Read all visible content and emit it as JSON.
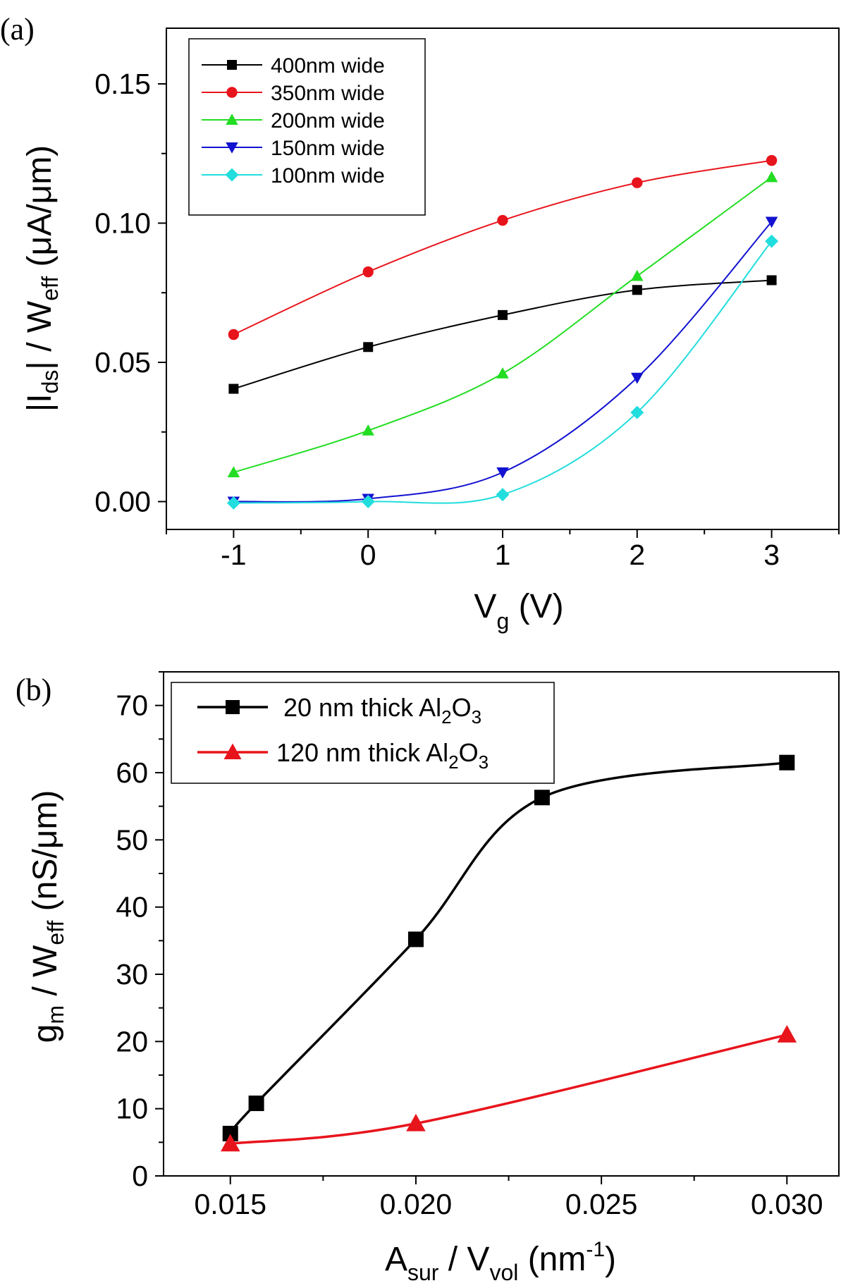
{
  "chart_data": [
    {
      "type": "line",
      "panel_label": "(a)",
      "xlim": [
        -1.5,
        3.5
      ],
      "ylim": [
        -0.01,
        0.17
      ],
      "x_ticks": [
        -1,
        0,
        1,
        2,
        3
      ],
      "x_tick_labels": [
        "-1",
        "0",
        "1",
        "2",
        "3"
      ],
      "y_ticks": [
        0.0,
        0.05,
        0.1,
        0.15
      ],
      "y_tick_labels": [
        "0.00",
        "0.05",
        "0.10",
        "0.15"
      ],
      "xlabel_main": "V",
      "xlabel_sub": "g",
      "xlabel_unit": " (V)",
      "ylabel_pre": "|I",
      "ylabel_sub1": "ds",
      "ylabel_mid": "| / W",
      "ylabel_sub2": "eff",
      "ylabel_unit": " (μA/μm)",
      "legend_position": "top-left",
      "series": [
        {
          "name": "400nm wide",
          "color": "#000000",
          "marker": "square",
          "x": [
            -1,
            0,
            1,
            2,
            3
          ],
          "values": [
            0.0405,
            0.0555,
            0.067,
            0.076,
            0.0795
          ]
        },
        {
          "name": "350nm wide",
          "color": "#e8141c",
          "marker": "circle",
          "x": [
            -1,
            0,
            1,
            2,
            3
          ],
          "values": [
            0.06,
            0.0825,
            0.101,
            0.1145,
            0.1225
          ]
        },
        {
          "name": "200nm wide",
          "color": "#22dd22",
          "marker": "triangle-up",
          "x": [
            -1,
            0,
            1,
            2,
            3
          ],
          "values": [
            0.0105,
            0.0255,
            0.046,
            0.081,
            0.1165
          ]
        },
        {
          "name": "150nm wide",
          "color": "#1212d0",
          "marker": "triangle-down",
          "x": [
            -1,
            0,
            1,
            2,
            3
          ],
          "values": [
            0.0,
            0.001,
            0.0105,
            0.0445,
            0.1005
          ]
        },
        {
          "name": "100nm wide",
          "color": "#22dddd",
          "marker": "diamond",
          "x": [
            -1,
            0,
            1,
            2,
            3
          ],
          "values": [
            -0.0005,
            0.0,
            0.0025,
            0.032,
            0.0935
          ]
        }
      ]
    },
    {
      "type": "line",
      "panel_label": "(b)",
      "xlim": [
        0.0132,
        0.0314
      ],
      "ylim": [
        0,
        75
      ],
      "x_ticks": [
        0.015,
        0.02,
        0.025,
        0.03
      ],
      "x_tick_labels": [
        "0.015",
        "0.020",
        "0.025",
        "0.030"
      ],
      "y_ticks": [
        0,
        10,
        20,
        30,
        40,
        50,
        60,
        70
      ],
      "y_tick_labels": [
        "0",
        "10",
        "20",
        "30",
        "40",
        "50",
        "60",
        "70"
      ],
      "xlabel_main": "A",
      "xlabel_sub1": "sur",
      "xlabel_mid": " / V",
      "xlabel_sub2": "vol",
      "xlabel_unit": " (nm",
      "xlabel_sup": "-1",
      "xlabel_close": ")",
      "ylabel_pre": "g",
      "ylabel_sub1": "m",
      "ylabel_mid": " / W",
      "ylabel_sub2": "eff",
      "ylabel_unit": " (nS/μm)",
      "legend_position": "top-left",
      "series": [
        {
          "name": "20 nm thick Al2O3",
          "label_pre": "20 nm thick Al",
          "sub1": "2",
          "mid": "O",
          "sub2": "3",
          "color": "#000000",
          "marker": "square",
          "x": [
            0.015,
            0.0157,
            0.02,
            0.0234,
            0.03
          ],
          "values": [
            6.3,
            10.8,
            35.2,
            56.3,
            61.5
          ]
        },
        {
          "name": "120 nm thick Al2O3",
          "label_pre": "120 nm thick Al",
          "sub1": "2",
          "mid": "O",
          "sub2": "3",
          "color": "#e8141c",
          "marker": "triangle-up",
          "x": [
            0.015,
            0.02,
            0.03
          ],
          "values": [
            4.8,
            7.8,
            21.0
          ]
        }
      ]
    }
  ]
}
